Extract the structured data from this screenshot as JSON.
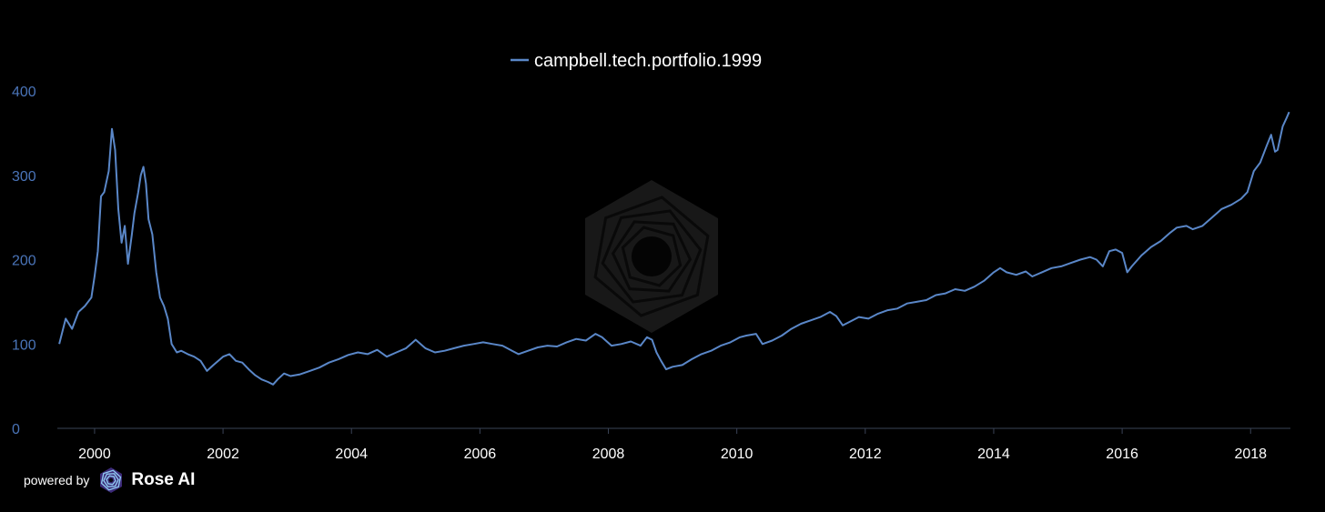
{
  "chart_data": {
    "type": "line",
    "title": "",
    "xlabel": "",
    "ylabel": "",
    "legend_position": "top-center",
    "grid": false,
    "xlim": [
      1999.42,
      2018.62
    ],
    "ylim": [
      0,
      400
    ],
    "x_ticks": [
      "2000",
      "2002",
      "2004",
      "2006",
      "2008",
      "2010",
      "2012",
      "2014",
      "2016",
      "2018"
    ],
    "y_ticks": [
      "0",
      "100",
      "200",
      "300",
      "400"
    ],
    "series": [
      {
        "name": "campbell.tech.portfolio.1999",
        "color": "#5a87c8",
        "points": [
          [
            1999.45,
            100
          ],
          [
            1999.55,
            130
          ],
          [
            1999.65,
            118
          ],
          [
            1999.75,
            138
          ],
          [
            1999.85,
            145
          ],
          [
            1999.95,
            155
          ],
          [
            2000.0,
            180
          ],
          [
            2000.05,
            210
          ],
          [
            2000.1,
            275
          ],
          [
            2000.15,
            280
          ],
          [
            2000.22,
            305
          ],
          [
            2000.27,
            355
          ],
          [
            2000.32,
            330
          ],
          [
            2000.37,
            260
          ],
          [
            2000.42,
            220
          ],
          [
            2000.47,
            240
          ],
          [
            2000.52,
            195
          ],
          [
            2000.58,
            230
          ],
          [
            2000.62,
            255
          ],
          [
            2000.68,
            280
          ],
          [
            2000.72,
            300
          ],
          [
            2000.76,
            310
          ],
          [
            2000.8,
            290
          ],
          [
            2000.84,
            248
          ],
          [
            2000.9,
            230
          ],
          [
            2000.96,
            185
          ],
          [
            2001.02,
            155
          ],
          [
            2001.08,
            145
          ],
          [
            2001.14,
            130
          ],
          [
            2001.2,
            100
          ],
          [
            2001.28,
            90
          ],
          [
            2001.35,
            92
          ],
          [
            2001.45,
            88
          ],
          [
            2001.55,
            85
          ],
          [
            2001.65,
            80
          ],
          [
            2001.75,
            68
          ],
          [
            2001.85,
            75
          ],
          [
            2002.0,
            85
          ],
          [
            2002.1,
            88
          ],
          [
            2002.2,
            80
          ],
          [
            2002.3,
            78
          ],
          [
            2002.4,
            70
          ],
          [
            2002.5,
            63
          ],
          [
            2002.6,
            58
          ],
          [
            2002.7,
            55
          ],
          [
            2002.78,
            52
          ],
          [
            2002.85,
            58
          ],
          [
            2002.95,
            65
          ],
          [
            2003.05,
            62
          ],
          [
            2003.2,
            64
          ],
          [
            2003.35,
            68
          ],
          [
            2003.5,
            72
          ],
          [
            2003.65,
            78
          ],
          [
            2003.8,
            82
          ],
          [
            2003.95,
            87
          ],
          [
            2004.1,
            90
          ],
          [
            2004.25,
            88
          ],
          [
            2004.4,
            93
          ],
          [
            2004.55,
            85
          ],
          [
            2004.7,
            90
          ],
          [
            2004.85,
            95
          ],
          [
            2005.0,
            105
          ],
          [
            2005.15,
            95
          ],
          [
            2005.3,
            90
          ],
          [
            2005.45,
            92
          ],
          [
            2005.6,
            95
          ],
          [
            2005.75,
            98
          ],
          [
            2005.9,
            100
          ],
          [
            2006.05,
            102
          ],
          [
            2006.2,
            100
          ],
          [
            2006.35,
            98
          ],
          [
            2006.5,
            92
          ],
          [
            2006.6,
            88
          ],
          [
            2006.75,
            92
          ],
          [
            2006.9,
            96
          ],
          [
            2007.05,
            98
          ],
          [
            2007.2,
            97
          ],
          [
            2007.35,
            102
          ],
          [
            2007.5,
            106
          ],
          [
            2007.65,
            104
          ],
          [
            2007.8,
            112
          ],
          [
            2007.9,
            108
          ],
          [
            2008.05,
            98
          ],
          [
            2008.2,
            100
          ],
          [
            2008.35,
            103
          ],
          [
            2008.5,
            98
          ],
          [
            2008.6,
            108
          ],
          [
            2008.68,
            105
          ],
          [
            2008.75,
            90
          ],
          [
            2008.82,
            80
          ],
          [
            2008.9,
            70
          ],
          [
            2009.0,
            73
          ],
          [
            2009.15,
            75
          ],
          [
            2009.3,
            82
          ],
          [
            2009.45,
            88
          ],
          [
            2009.6,
            92
          ],
          [
            2009.75,
            98
          ],
          [
            2009.9,
            102
          ],
          [
            2010.05,
            108
          ],
          [
            2010.15,
            110
          ],
          [
            2010.3,
            112
          ],
          [
            2010.4,
            100
          ],
          [
            2010.55,
            104
          ],
          [
            2010.7,
            110
          ],
          [
            2010.85,
            118
          ],
          [
            2011.0,
            124
          ],
          [
            2011.15,
            128
          ],
          [
            2011.3,
            132
          ],
          [
            2011.45,
            138
          ],
          [
            2011.55,
            133
          ],
          [
            2011.65,
            122
          ],
          [
            2011.75,
            126
          ],
          [
            2011.9,
            132
          ],
          [
            2012.05,
            130
          ],
          [
            2012.2,
            136
          ],
          [
            2012.35,
            140
          ],
          [
            2012.5,
            142
          ],
          [
            2012.65,
            148
          ],
          [
            2012.8,
            150
          ],
          [
            2012.95,
            152
          ],
          [
            2013.1,
            158
          ],
          [
            2013.25,
            160
          ],
          [
            2013.4,
            165
          ],
          [
            2013.55,
            163
          ],
          [
            2013.7,
            168
          ],
          [
            2013.85,
            175
          ],
          [
            2014.0,
            185
          ],
          [
            2014.1,
            190
          ],
          [
            2014.2,
            185
          ],
          [
            2014.35,
            182
          ],
          [
            2014.5,
            186
          ],
          [
            2014.6,
            180
          ],
          [
            2014.75,
            185
          ],
          [
            2014.9,
            190
          ],
          [
            2015.05,
            192
          ],
          [
            2015.2,
            196
          ],
          [
            2015.35,
            200
          ],
          [
            2015.5,
            203
          ],
          [
            2015.6,
            200
          ],
          [
            2015.7,
            192
          ],
          [
            2015.8,
            210
          ],
          [
            2015.9,
            212
          ],
          [
            2016.0,
            208
          ],
          [
            2016.08,
            185
          ],
          [
            2016.15,
            192
          ],
          [
            2016.3,
            205
          ],
          [
            2016.45,
            215
          ],
          [
            2016.6,
            222
          ],
          [
            2016.75,
            232
          ],
          [
            2016.85,
            238
          ],
          [
            2017.0,
            240
          ],
          [
            2017.1,
            236
          ],
          [
            2017.25,
            240
          ],
          [
            2017.4,
            250
          ],
          [
            2017.55,
            260
          ],
          [
            2017.7,
            265
          ],
          [
            2017.85,
            272
          ],
          [
            2017.95,
            280
          ],
          [
            2018.05,
            305
          ],
          [
            2018.15,
            315
          ],
          [
            2018.25,
            335
          ],
          [
            2018.32,
            348
          ],
          [
            2018.38,
            328
          ],
          [
            2018.42,
            330
          ],
          [
            2018.5,
            358
          ],
          [
            2018.56,
            368
          ],
          [
            2018.6,
            375
          ]
        ]
      }
    ]
  },
  "footer": {
    "powered_by": "powered by",
    "brand": "Rose AI",
    "logo_icon": "rose-ai-logo-icon"
  },
  "watermark": {
    "icon": "spiral-hexagon-watermark-icon"
  },
  "colors": {
    "background": "#000000",
    "line": "#5a87c8",
    "axis_text": "#4a74b8",
    "axis_line": "#3a4356",
    "legend_text": "#ffffff"
  }
}
